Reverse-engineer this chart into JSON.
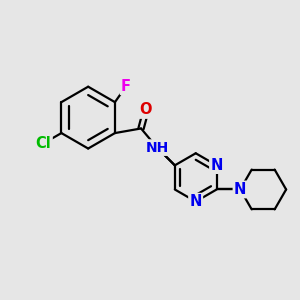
{
  "background_color": "#e6e6e6",
  "bond_color": "#000000",
  "atom_colors": {
    "F": "#ee00ee",
    "Cl": "#00bb00",
    "O": "#dd0000",
    "N": "#0000ee",
    "C": "#000000",
    "H": "#000000"
  },
  "bond_width": 1.6,
  "font_size": 10.5,
  "fig_width": 3.0,
  "fig_height": 3.0,
  "dpi": 100
}
